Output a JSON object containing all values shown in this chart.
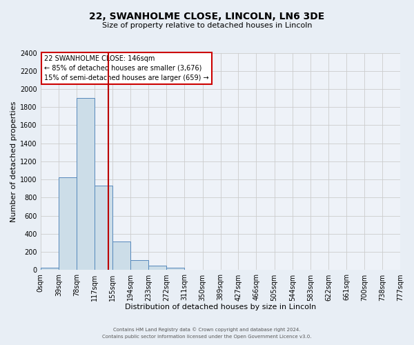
{
  "title_line1": "22, SWANHOLME CLOSE, LINCOLN, LN6 3DE",
  "title_line2": "Size of property relative to detached houses in Lincoln",
  "xlabel": "Distribution of detached houses by size in Lincoln",
  "ylabel": "Number of detached properties",
  "bin_edges": [
    0,
    39,
    78,
    117,
    155,
    194,
    233,
    272,
    311,
    350,
    389,
    427,
    466,
    505,
    544,
    583,
    622,
    661,
    700,
    738,
    777
  ],
  "bin_labels": [
    "0sqm",
    "39sqm",
    "78sqm",
    "117sqm",
    "155sqm",
    "194sqm",
    "233sqm",
    "272sqm",
    "311sqm",
    "350sqm",
    "389sqm",
    "427sqm",
    "466sqm",
    "505sqm",
    "544sqm",
    "583sqm",
    "622sqm",
    "661sqm",
    "700sqm",
    "738sqm",
    "777sqm"
  ],
  "bar_heights": [
    25,
    1025,
    1900,
    930,
    315,
    110,
    50,
    25,
    0,
    0,
    0,
    0,
    0,
    0,
    0,
    0,
    0,
    0,
    0,
    0
  ],
  "bar_color": "#ccdde8",
  "bar_edge_color": "#5588bb",
  "vline_x": 146,
  "vline_color": "#bb0000",
  "ylim_max": 2400,
  "yticks": [
    0,
    200,
    400,
    600,
    800,
    1000,
    1200,
    1400,
    1600,
    1800,
    2000,
    2200,
    2400
  ],
  "annotation_title": "22 SWANHOLME CLOSE: 146sqm",
  "annotation_line1": "← 85% of detached houses are smaller (3,676)",
  "annotation_line2": "15% of semi-detached houses are larger (659) →",
  "annotation_box_facecolor": "#ffffff",
  "annotation_box_edgecolor": "#cc0000",
  "grid_color": "#cccccc",
  "bg_color": "#e8eef5",
  "plot_bg_color": "#eef2f8",
  "footer1": "Contains HM Land Registry data © Crown copyright and database right 2024.",
  "footer2": "Contains public sector information licensed under the Open Government Licence v3.0.",
  "title1_fontsize": 10,
  "title2_fontsize": 8,
  "xlabel_fontsize": 8,
  "ylabel_fontsize": 8,
  "tick_fontsize": 7,
  "annotation_fontsize": 7,
  "footer_fontsize": 5
}
